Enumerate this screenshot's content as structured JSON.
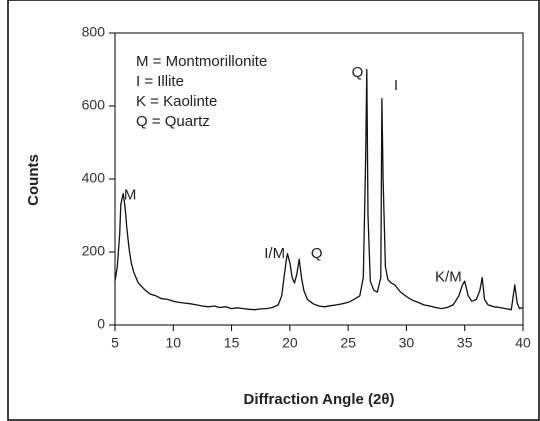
{
  "chart_data": {
    "type": "line",
    "xlabel": "Diffraction Angle (2θ)",
    "ylabel": "Counts",
    "legend_text": [
      "M = Montmorillonite",
      "I = Illite",
      "K = Kaolinte",
      "Q = Quartz"
    ],
    "annotations": [
      {
        "text": "M",
        "x": 6.3,
        "y": 355
      },
      {
        "text": "I/M",
        "x": 18.7,
        "y": 195
      },
      {
        "text": "Q",
        "x": 22.3,
        "y": 195
      },
      {
        "text": "Q",
        "x": 25.8,
        "y": 690
      },
      {
        "text": "I",
        "x": 29.1,
        "y": 655
      },
      {
        "text": "K/M",
        "x": 33.6,
        "y": 130
      }
    ],
    "color": "#111111",
    "x": [
      5.0,
      5.2,
      5.4,
      5.5,
      5.6,
      5.7,
      5.8,
      5.9,
      6.0,
      6.2,
      6.4,
      6.6,
      6.8,
      7.0,
      7.3,
      7.6,
      8.0,
      8.5,
      9.0,
      9.5,
      10.0,
      10.5,
      11.0,
      11.5,
      12.0,
      12.5,
      13.0,
      13.5,
      14.0,
      14.5,
      15.0,
      15.5,
      16.0,
      16.5,
      17.0,
      17.5,
      18.0,
      18.5,
      19.0,
      19.3,
      19.5,
      19.7,
      19.8,
      20.0,
      20.2,
      20.4,
      20.6,
      20.8,
      21.0,
      21.2,
      21.5,
      22.0,
      22.5,
      23.0,
      23.5,
      24.0,
      24.5,
      25.0,
      25.5,
      26.0,
      26.3,
      26.5,
      26.6,
      26.7,
      26.9,
      27.2,
      27.5,
      27.8,
      27.9,
      28.0,
      28.2,
      28.4,
      28.7,
      29.0,
      29.5,
      30.0,
      30.5,
      31.0,
      31.5,
      32.0,
      32.5,
      33.0,
      33.5,
      34.0,
      34.5,
      34.8,
      35.0,
      35.3,
      35.6,
      36.0,
      36.3,
      36.5,
      36.7,
      37.0,
      37.5,
      38.0,
      38.5,
      39.0,
      39.3,
      39.5,
      39.7,
      40.0
    ],
    "values": [
      120,
      160,
      250,
      330,
      345,
      360,
      340,
      310,
      270,
      210,
      170,
      145,
      130,
      115,
      105,
      95,
      85,
      80,
      72,
      70,
      65,
      62,
      60,
      58,
      55,
      52,
      50,
      52,
      48,
      50,
      45,
      47,
      45,
      43,
      42,
      44,
      45,
      48,
      55,
      80,
      130,
      180,
      195,
      170,
      130,
      115,
      140,
      180,
      130,
      95,
      70,
      58,
      52,
      50,
      53,
      55,
      58,
      62,
      70,
      80,
      130,
      450,
      700,
      300,
      120,
      95,
      90,
      130,
      620,
      400,
      160,
      125,
      115,
      110,
      90,
      78,
      68,
      62,
      55,
      52,
      48,
      45,
      48,
      55,
      80,
      110,
      120,
      80,
      65,
      70,
      95,
      130,
      70,
      55,
      50,
      48,
      45,
      42,
      110,
      60,
      45,
      48
    ],
    "xlim": [
      5,
      40
    ],
    "ylim": [
      0,
      800
    ],
    "xticks": [
      5,
      10,
      15,
      20,
      25,
      30,
      35,
      40
    ],
    "yticks": [
      0,
      200,
      400,
      600,
      800
    ]
  }
}
